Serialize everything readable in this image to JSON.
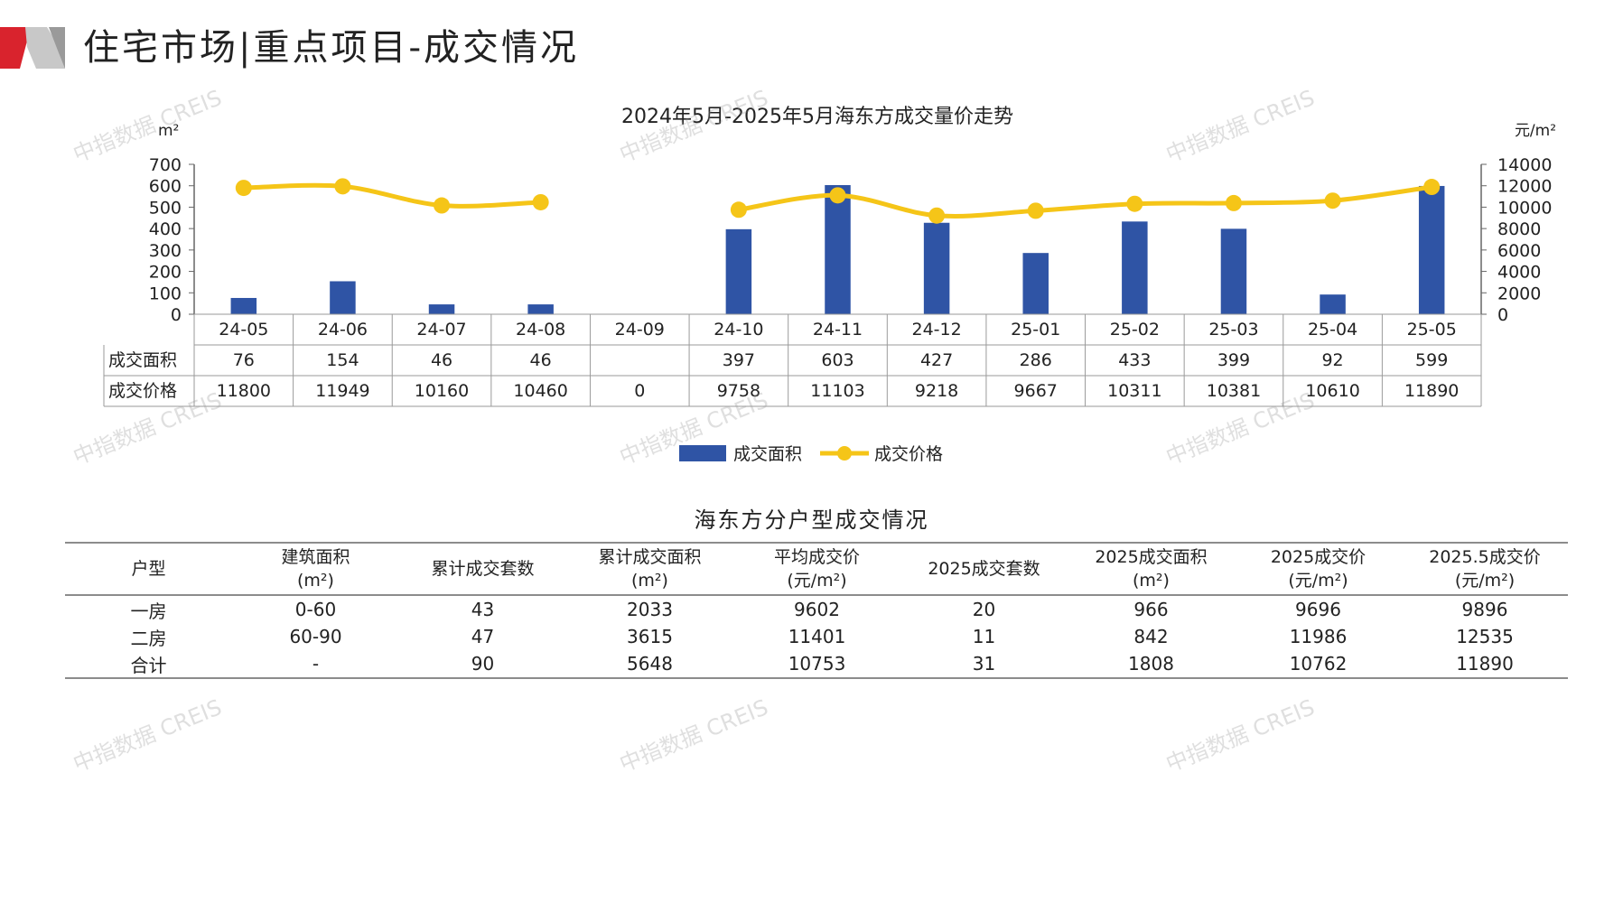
{
  "page": {
    "title": "住宅市场|重点项目-成交情况",
    "watermark": "中指数据 CREIS"
  },
  "chart_data": {
    "type": "bar",
    "title": "2024年5月-2025年5月海东方成交量价走势",
    "y_left_unit": "m²",
    "y_right_unit": "元/m²",
    "ylim_left": [
      0,
      700
    ],
    "ylim_right": [
      0,
      14000
    ],
    "y_left_ticks": [
      0,
      100,
      200,
      300,
      400,
      500,
      600,
      700
    ],
    "y_right_ticks": [
      0,
      2000,
      4000,
      6000,
      8000,
      10000,
      12000,
      14000
    ],
    "categories": [
      "24-05",
      "24-06",
      "24-07",
      "24-08",
      "24-09",
      "24-10",
      "24-11",
      "24-12",
      "25-01",
      "25-02",
      "25-03",
      "25-04",
      "25-05"
    ],
    "series": [
      {
        "name": "成交面积",
        "type": "bar",
        "axis": "left",
        "color": "#2f54a5",
        "values": [
          76,
          154,
          46,
          46,
          null,
          397,
          603,
          427,
          286,
          433,
          399,
          92,
          599
        ],
        "table_labels": [
          "76",
          "154",
          "46",
          "46",
          "",
          "397",
          "603",
          "427",
          "286",
          "433",
          "399",
          "92",
          "599"
        ]
      },
      {
        "name": "成交价格",
        "type": "line",
        "axis": "right",
        "color": "#f5c518",
        "values": [
          11800,
          11949,
          10160,
          10460,
          0,
          9758,
          11103,
          9218,
          9667,
          10311,
          10381,
          10610,
          11890
        ],
        "table_labels": [
          "11800",
          "11949",
          "10160",
          "10460",
          "0",
          "9758",
          "11103",
          "9218",
          "9667",
          "10311",
          "10381",
          "10610",
          "11890"
        ]
      }
    ],
    "legend_position": "bottom",
    "grid": false
  },
  "table": {
    "caption": "海东方分户型成交情况",
    "headers": [
      [
        "户型"
      ],
      [
        "建筑面积",
        "(m²)"
      ],
      [
        "累计成交套数"
      ],
      [
        "累计成交面积",
        "(m²)"
      ],
      [
        "平均成交价",
        "(元/m²)"
      ],
      [
        "2025成交套数"
      ],
      [
        "2025成交面积",
        "(m²)"
      ],
      [
        "2025成交价",
        "(元/m²)"
      ],
      [
        "2025.5成交价",
        "(元/m²)"
      ]
    ],
    "rows": [
      [
        "一房",
        "0-60",
        "43",
        "2033",
        "9602",
        "20",
        "966",
        "9696",
        "9896"
      ],
      [
        "二房",
        "60-90",
        "47",
        "3615",
        "11401",
        "11",
        "842",
        "11986",
        "12535"
      ],
      [
        "合计",
        "-",
        "90",
        "5648",
        "10753",
        "31",
        "1808",
        "10762",
        "11890"
      ]
    ]
  },
  "colors": {
    "bar": "#2f54a5",
    "line": "#f5c518",
    "accent_red": "#d9232d",
    "deco_gray": "#a7a7a7"
  }
}
